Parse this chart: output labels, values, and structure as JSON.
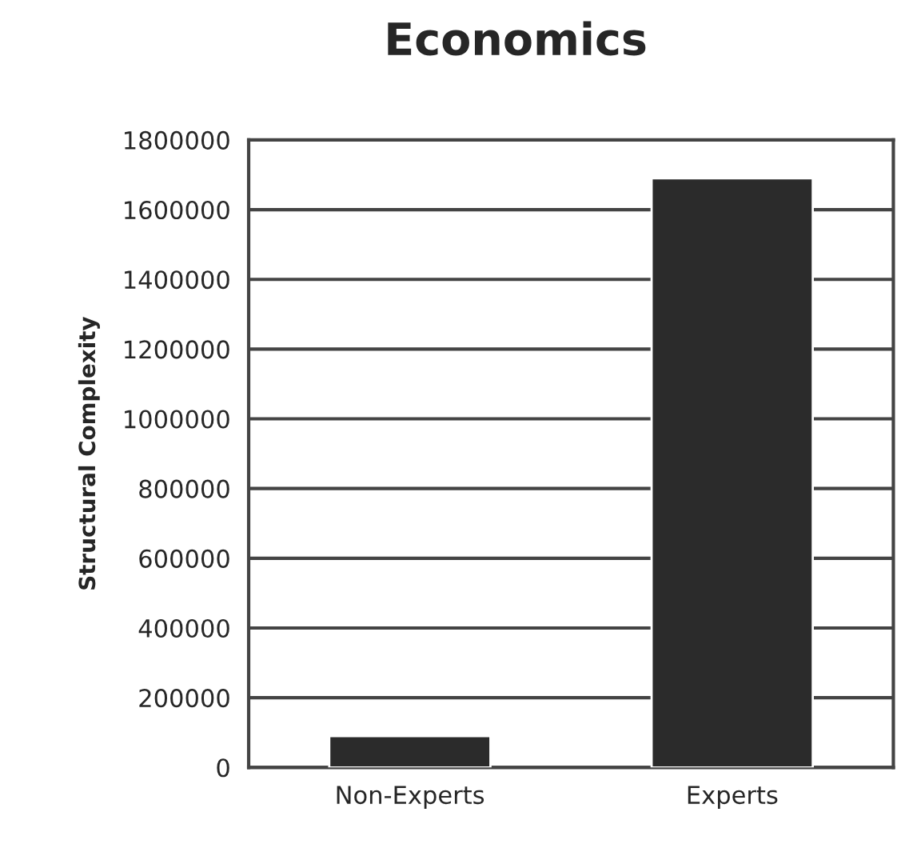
{
  "chart_data": {
    "type": "bar",
    "title": "Economics",
    "ylabel": "Structural Complexity",
    "categories": [
      "Non-Experts",
      "Experts"
    ],
    "values": [
      90000,
      1690000
    ],
    "color": "#2b2b2b",
    "ylim": [
      0,
      1800000
    ],
    "yticks": [
      0,
      200000,
      400000,
      600000,
      800000,
      1000000,
      1200000,
      1400000,
      1600000,
      1800000
    ],
    "grid": "y",
    "legend": false
  }
}
